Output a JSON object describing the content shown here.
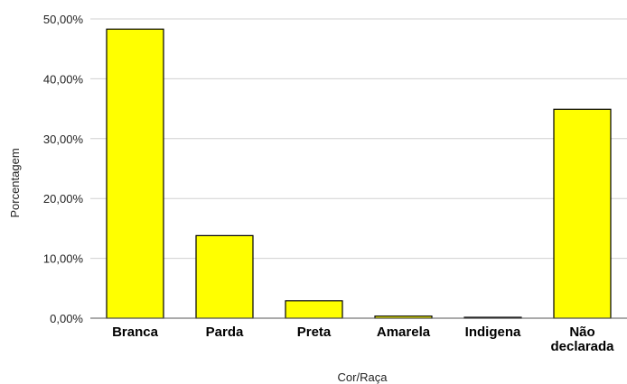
{
  "chart_data": {
    "type": "bar",
    "title": "",
    "xlabel": "Cor/Raça",
    "ylabel": "Porcentagem",
    "categories": [
      "Branca",
      "Parda",
      "Preta",
      "Amarela",
      "Indigena",
      "Não declarada"
    ],
    "category_lines": [
      [
        "Branca"
      ],
      [
        "Parda"
      ],
      [
        "Preta"
      ],
      [
        "Amarela"
      ],
      [
        "Indigena"
      ],
      [
        "Não",
        "declarada"
      ]
    ],
    "values": [
      48.3,
      13.8,
      2.9,
      0.35,
      0.15,
      34.9
    ],
    "ylim": [
      0,
      50
    ],
    "yticks": [
      0,
      10,
      20,
      30,
      40,
      50
    ],
    "ytick_labels": [
      "0,00%",
      "10,00%",
      "20,00%",
      "30,00%",
      "40,00%",
      "50,00%"
    ],
    "grid": true,
    "bar_color": "#ffff00",
    "bar_edge_color": "#000000",
    "grid_color": "#d0d0d0",
    "axis_color": "#555555"
  }
}
